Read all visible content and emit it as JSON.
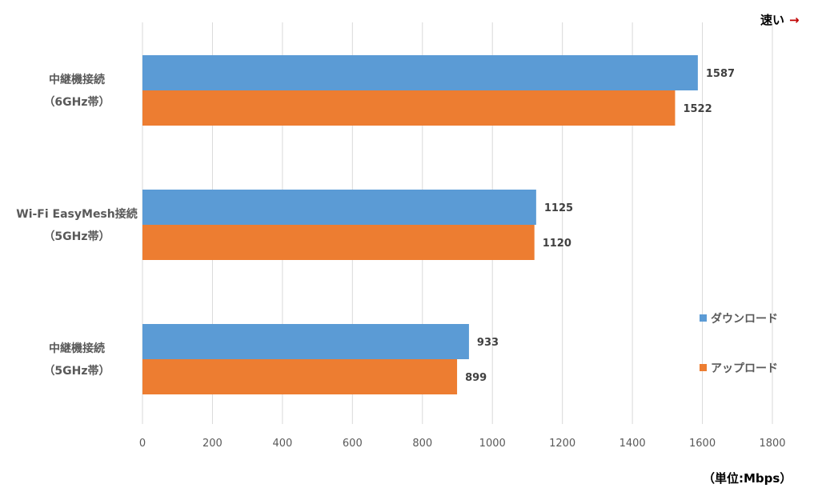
{
  "chart_data": {
    "type": "bar",
    "orientation": "horizontal",
    "categories": [
      [
        "中継機接続",
        "（6GHz帯）"
      ],
      [
        "Wi-Fi EasyMesh接続",
        "（5GHz帯）"
      ],
      [
        "中継機接続",
        "（5GHz帯）"
      ]
    ],
    "series": [
      {
        "name": "ダウンロード",
        "color": "#5B9BD5",
        "values": [
          1587,
          1125,
          933
        ]
      },
      {
        "name": "アップロード",
        "color": "#ED7D31",
        "values": [
          1522,
          1120,
          899
        ]
      }
    ],
    "xlim": [
      0,
      1800
    ],
    "xticks": [
      "0",
      "200",
      "400",
      "600",
      "800",
      "1000",
      "1200",
      "1400",
      "1600",
      "1800"
    ],
    "grid": true,
    "legend_position": "right",
    "unit_label": "（単位:Mbps）",
    "direction_label": {
      "text": "速い",
      "arrow": "→",
      "arrow_color": "#C00000"
    }
  }
}
